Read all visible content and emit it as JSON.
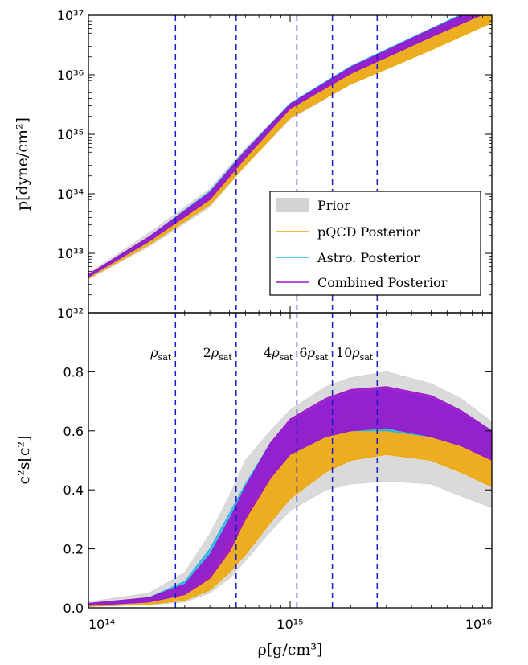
{
  "chart_data": [
    {
      "type": "line",
      "panel": "top",
      "ylabel": "p[dyne/cm²]",
      "xscale": "log",
      "yscale": "log",
      "xlim": [
        100000000000000.0,
        1e+16
      ],
      "ylim": [
        1e+32,
        1e+37
      ],
      "yticks": [
        {
          "v": 1e+32,
          "label": "10³²"
        },
        {
          "v": 1e+33,
          "label": "10³³"
        },
        {
          "v": 1e+34,
          "label": "10³⁴"
        },
        {
          "v": 1e+35,
          "label": "10³⁵"
        },
        {
          "v": 1e+36,
          "label": "10³⁶"
        },
        {
          "v": 1e+37,
          "label": "10³⁷"
        }
      ],
      "legend": {
        "position": "lower-right",
        "entries": [
          {
            "label": "Prior",
            "color": "#d3d3d3",
            "kind": "patch"
          },
          {
            "label": "pQCD Posterior",
            "color": "#f0a500",
            "kind": "line"
          },
          {
            "label": "Astro. Posterior",
            "color": "#21b5e6",
            "kind": "line"
          },
          {
            "label": "Combined Posterior",
            "color": "#9b12cc",
            "kind": "line"
          }
        ]
      },
      "series": [
        {
          "name": "Prior",
          "x": [
            100000000000000.0,
            200000000000000.0,
            400000000000000.0,
            600000000000000.0,
            1000000000000000.0,
            2000000000000000.0,
            5000000000000000.0,
            1e+16
          ],
          "lower": [
            3.7e+32,
            1.3e+33,
            6e+33,
            3e+34,
            1.8e+35,
            7e+35,
            2.8e+36,
            8e+36
          ],
          "upper": [
            4.6e+32,
            2.2e+33,
            1.2e+34,
            5.8e+34,
            3.2e+35,
            1.1e+36,
            5e+36,
            1.3e+37
          ]
        },
        {
          "name": "pQCD Posterior",
          "x": [
            100000000000000.0,
            200000000000000.0,
            400000000000000.0,
            600000000000000.0,
            1000000000000000.0,
            2000000000000000.0,
            5000000000000000.0,
            1e+16
          ],
          "lower": [
            3.8e+32,
            1.4e+33,
            6.5e+33,
            3e+34,
            1.9e+35,
            7e+35,
            2.6e+36,
            7.5e+36
          ],
          "upper": [
            4.4e+32,
            1.9e+33,
            9.5e+33,
            4.8e+34,
            3.1e+35,
            1.2e+36,
            5e+36,
            1.3e+37
          ]
        },
        {
          "name": "Astro. Posterior",
          "x": [
            100000000000000.0,
            200000000000000.0,
            400000000000000.0,
            600000000000000.0,
            1000000000000000.0,
            2000000000000000.0,
            5000000000000000.0,
            1e+16
          ],
          "lower": [
            4e+32,
            1.6e+33,
            8.5e+33,
            4.3e+34,
            2.8e+35,
            1.1e+36,
            4.5e+36,
            1.3e+37
          ],
          "upper": [
            4.4e+32,
            1.9e+33,
            1.1e+34,
            5.4e+34,
            3.3e+35,
            1.4e+36,
            6e+36,
            1.8e+37
          ]
        },
        {
          "name": "Combined Posterior",
          "x": [
            100000000000000.0,
            200000000000000.0,
            400000000000000.0,
            600000000000000.0,
            1000000000000000.0,
            2000000000000000.0,
            5000000000000000.0,
            1e+16
          ],
          "lower": [
            4e+32,
            1.6e+33,
            8e+33,
            4e+34,
            2.7e+35,
            1.05e+36,
            4.3e+36,
            1.2e+37
          ],
          "upper": [
            4.4e+32,
            1.9e+33,
            1.05e+34,
            5.2e+34,
            3.2e+35,
            1.35e+36,
            5.8e+36,
            1.7e+37
          ]
        }
      ]
    },
    {
      "type": "line",
      "panel": "bottom",
      "xlabel": "ρ[g/cm³]",
      "ylabel": "c²s[c²]",
      "xscale": "log",
      "yscale": "linear",
      "xlim": [
        100000000000000.0,
        1e+16
      ],
      "ylim": [
        0.0,
        1.0
      ],
      "xticks": [
        {
          "v": 100000000000000.0,
          "label": "10¹⁴"
        },
        {
          "v": 1000000000000000.0,
          "label": "10¹⁵"
        },
        {
          "v": 1e+16,
          "label": "10¹⁶"
        }
      ],
      "yticks": [
        {
          "v": 0.0,
          "label": "0.0"
        },
        {
          "v": 0.2,
          "label": "0.2"
        },
        {
          "v": 0.4,
          "label": "0.4"
        },
        {
          "v": 0.6,
          "label": "0.6"
        },
        {
          "v": 0.8,
          "label": "0.8"
        }
      ],
      "reference_lines": [
        {
          "x": 270000000000000.0,
          "label": "ρsat"
        },
        {
          "x": 540000000000000.0,
          "label": "2ρsat"
        },
        {
          "x": 1080000000000000.0,
          "label": "4ρsat"
        },
        {
          "x": 1620000000000000.0,
          "label": "6ρsat"
        },
        {
          "x": 2700000000000000.0,
          "label": "10ρsat"
        }
      ],
      "series": [
        {
          "name": "Prior",
          "x": [
            100000000000000.0,
            200000000000000.0,
            300000000000000.0,
            400000000000000.0,
            500000000000000.0,
            600000000000000.0,
            800000000000000.0,
            1000000000000000.0,
            1500000000000000.0,
            2000000000000000.0,
            3000000000000000.0,
            5000000000000000.0,
            7000000000000000.0,
            1e+16
          ],
          "lower": [
            0.005,
            0.01,
            0.02,
            0.05,
            0.1,
            0.16,
            0.26,
            0.33,
            0.4,
            0.42,
            0.43,
            0.42,
            0.38,
            0.34
          ],
          "upper": [
            0.02,
            0.05,
            0.12,
            0.25,
            0.38,
            0.5,
            0.6,
            0.67,
            0.75,
            0.78,
            0.8,
            0.76,
            0.71,
            0.63
          ]
        },
        {
          "name": "pQCD Posterior",
          "x": [
            100000000000000.0,
            200000000000000.0,
            300000000000000.0,
            400000000000000.0,
            500000000000000.0,
            600000000000000.0,
            800000000000000.0,
            1000000000000000.0,
            1500000000000000.0,
            2000000000000000.0,
            3000000000000000.0,
            5000000000000000.0,
            7000000000000000.0,
            1e+16
          ],
          "lower": [
            0.005,
            0.012,
            0.025,
            0.06,
            0.12,
            0.18,
            0.29,
            0.37,
            0.46,
            0.5,
            0.52,
            0.5,
            0.46,
            0.41
          ],
          "upper": [
            0.015,
            0.035,
            0.08,
            0.17,
            0.28,
            0.37,
            0.49,
            0.56,
            0.64,
            0.68,
            0.69,
            0.66,
            0.62,
            0.57
          ]
        },
        {
          "name": "Astro. Posterior",
          "x": [
            100000000000000.0,
            200000000000000.0,
            300000000000000.0,
            400000000000000.0,
            500000000000000.0,
            600000000000000.0,
            800000000000000.0,
            1000000000000000.0,
            1500000000000000.0,
            2000000000000000.0,
            3000000000000000.0,
            5000000000000000.0,
            7000000000000000.0,
            1e+16
          ],
          "lower": [
            0.008,
            0.02,
            0.05,
            0.12,
            0.22,
            0.32,
            0.45,
            0.52,
            0.58,
            0.6,
            0.6,
            0.58,
            0.55,
            0.51
          ],
          "upper": [
            0.015,
            0.035,
            0.09,
            0.2,
            0.32,
            0.42,
            0.56,
            0.63,
            0.7,
            0.73,
            0.74,
            0.71,
            0.66,
            0.6
          ]
        },
        {
          "name": "Combined Posterior",
          "x": [
            100000000000000.0,
            200000000000000.0,
            300000000000000.0,
            400000000000000.0,
            500000000000000.0,
            600000000000000.0,
            800000000000000.0,
            1000000000000000.0,
            1500000000000000.0,
            2000000000000000.0,
            3000000000000000.0,
            5000000000000000.0,
            7000000000000000.0,
            1e+16
          ],
          "lower": [
            0.008,
            0.02,
            0.045,
            0.1,
            0.19,
            0.3,
            0.44,
            0.52,
            0.58,
            0.6,
            0.61,
            0.58,
            0.55,
            0.5
          ],
          "upper": [
            0.015,
            0.035,
            0.08,
            0.18,
            0.3,
            0.41,
            0.56,
            0.64,
            0.71,
            0.74,
            0.75,
            0.72,
            0.67,
            0.6
          ]
        }
      ]
    }
  ],
  "colors": {
    "prior": "#d3d3d3",
    "pqcd": "#f0a500",
    "astro": "#21b5e6",
    "combined": "#9b12cc",
    "reference_line": "#1a1acc"
  }
}
